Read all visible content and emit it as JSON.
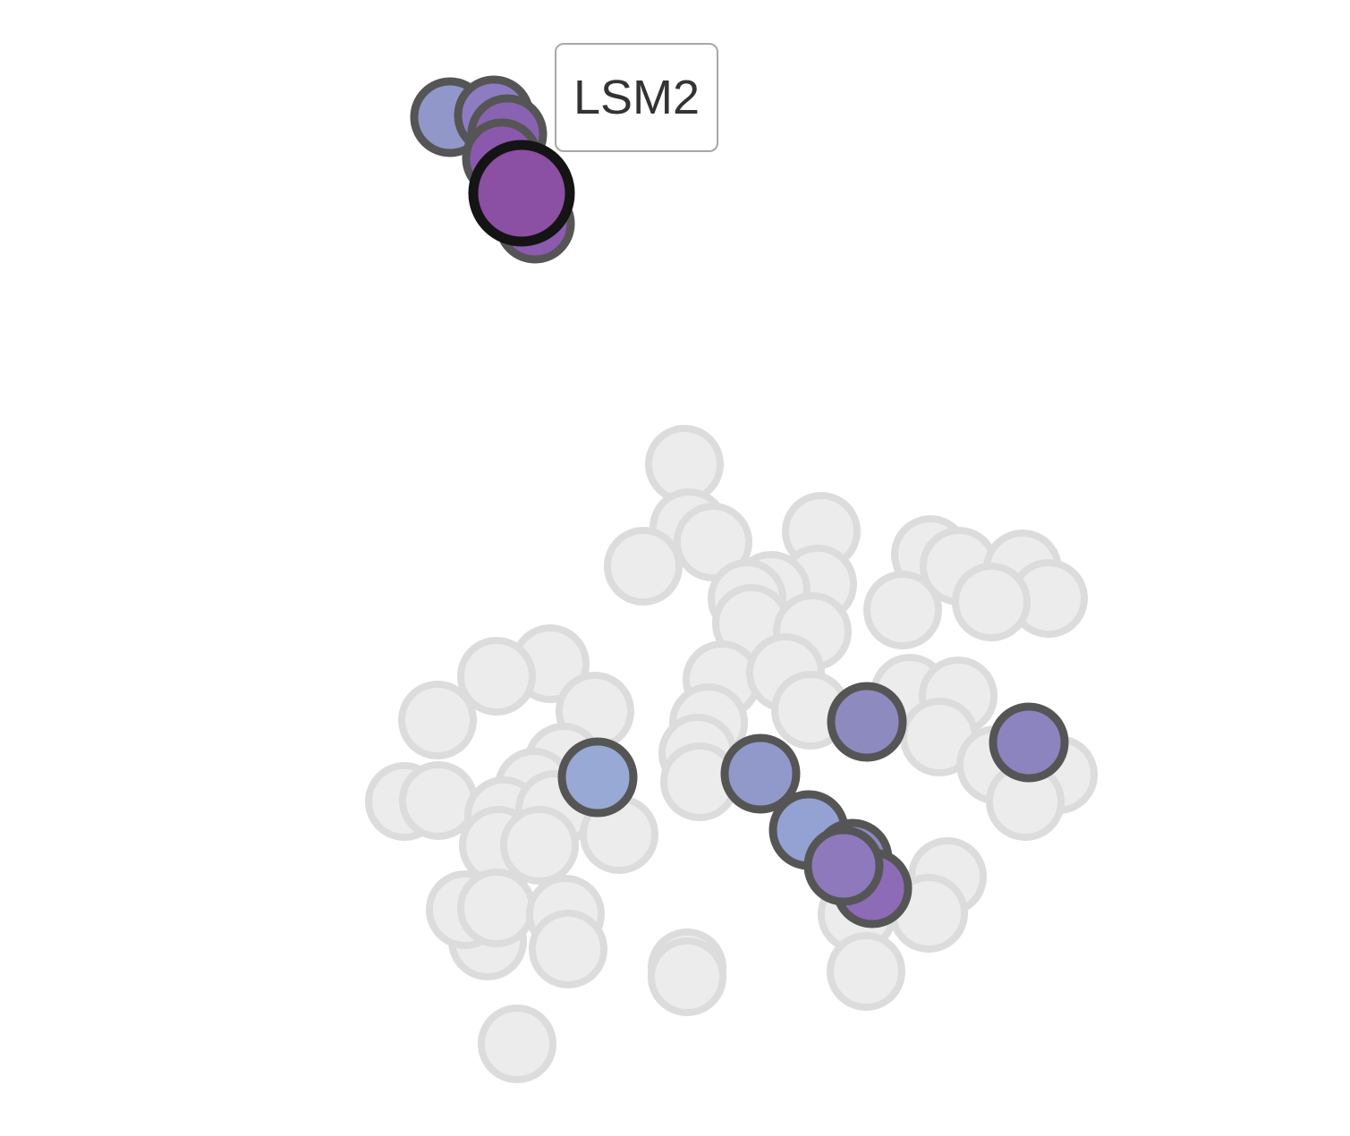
{
  "chart_data": {
    "type": "scatter",
    "title": "",
    "xlabel": "",
    "ylabel": "",
    "grid": false,
    "legend": "none",
    "tooltip": {
      "label": "LSM2"
    },
    "colors": {
      "background_point_fill": "#ececec",
      "background_point_stroke": "#dcdcdc",
      "highlight_stroke": "#555555",
      "selected_stroke": "#141414"
    },
    "series": [
      {
        "role": "background",
        "points": [
          {
            "x": 765,
            "y": 519
          },
          {
            "x": 770,
            "y": 590
          },
          {
            "x": 797,
            "y": 606
          },
          {
            "x": 719,
            "y": 633
          },
          {
            "x": 918,
            "y": 594
          },
          {
            "x": 914,
            "y": 653
          },
          {
            "x": 862,
            "y": 660
          },
          {
            "x": 835,
            "y": 669
          },
          {
            "x": 840,
            "y": 697
          },
          {
            "x": 908,
            "y": 706
          },
          {
            "x": 1040,
            "y": 620
          },
          {
            "x": 1072,
            "y": 633
          },
          {
            "x": 1143,
            "y": 636
          },
          {
            "x": 1172,
            "y": 669
          },
          {
            "x": 1009,
            "y": 682
          },
          {
            "x": 1108,
            "y": 673
          },
          {
            "x": 807,
            "y": 760
          },
          {
            "x": 878,
            "y": 752
          },
          {
            "x": 906,
            "y": 794
          },
          {
            "x": 1017,
            "y": 775
          },
          {
            "x": 1071,
            "y": 778
          },
          {
            "x": 1050,
            "y": 824
          },
          {
            "x": 1113,
            "y": 855
          },
          {
            "x": 1183,
            "y": 866
          },
          {
            "x": 1146,
            "y": 896
          },
          {
            "x": 792,
            "y": 808
          },
          {
            "x": 780,
            "y": 842
          },
          {
            "x": 782,
            "y": 874
          },
          {
            "x": 615,
            "y": 742
          },
          {
            "x": 555,
            "y": 756
          },
          {
            "x": 665,
            "y": 795
          },
          {
            "x": 489,
            "y": 805
          },
          {
            "x": 630,
            "y": 852
          },
          {
            "x": 597,
            "y": 880
          },
          {
            "x": 452,
            "y": 896
          },
          {
            "x": 490,
            "y": 895
          },
          {
            "x": 563,
            "y": 912
          },
          {
            "x": 620,
            "y": 905
          },
          {
            "x": 692,
            "y": 933
          },
          {
            "x": 557,
            "y": 945
          },
          {
            "x": 603,
            "y": 945
          },
          {
            "x": 545,
            "y": 1052
          },
          {
            "x": 520,
            "y": 1017
          },
          {
            "x": 555,
            "y": 1015
          },
          {
            "x": 632,
            "y": 1022
          },
          {
            "x": 635,
            "y": 1061
          },
          {
            "x": 768,
            "y": 1082
          },
          {
            "x": 768,
            "y": 1092
          },
          {
            "x": 1059,
            "y": 980
          },
          {
            "x": 1038,
            "y": 1021
          },
          {
            "x": 958,
            "y": 1022
          },
          {
            "x": 968,
            "y": 1086
          },
          {
            "x": 578,
            "y": 1167
          }
        ]
      },
      {
        "role": "highlighted",
        "points": [
          {
            "x": 503,
            "y": 131,
            "color": "#9197c8"
          },
          {
            "x": 552,
            "y": 129,
            "color": "#8d7cc1"
          },
          {
            "x": 567,
            "y": 150,
            "color": "#8a62b2"
          },
          {
            "x": 561,
            "y": 177,
            "color": "#8a58ad"
          },
          {
            "x": 598,
            "y": 250,
            "color": "#8c5aaf"
          },
          {
            "x": 668,
            "y": 869,
            "color": "#97a9d4"
          },
          {
            "x": 850,
            "y": 865,
            "color": "#9099c9"
          },
          {
            "x": 969,
            "y": 807,
            "color": "#8d8ac0"
          },
          {
            "x": 1150,
            "y": 830,
            "color": "#8c84bf"
          },
          {
            "x": 904,
            "y": 928,
            "color": "#93a2d2"
          },
          {
            "x": 953,
            "y": 960,
            "color": "#8e88c0"
          },
          {
            "x": 975,
            "y": 993,
            "color": "#8d6bb6"
          },
          {
            "x": 943,
            "y": 968,
            "color": "#8d79bb"
          }
        ]
      },
      {
        "role": "selected",
        "name": "LSM2",
        "points": [
          {
            "x": 583,
            "y": 216,
            "color": "#8b4fa3"
          }
        ]
      }
    ]
  }
}
